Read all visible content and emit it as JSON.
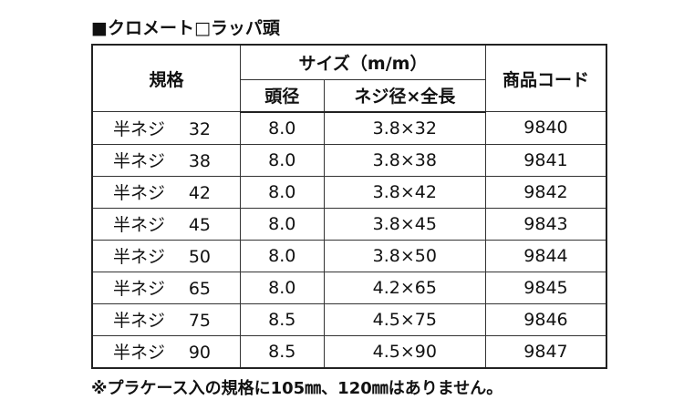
{
  "header": {
    "title": "■クロメート□ラッパ頭"
  },
  "table": {
    "columns": {
      "spec": "規格",
      "size": "サイズ（m/m）",
      "head": "頭径",
      "dims": "ネジ径×全長",
      "code": "商品コード"
    },
    "rows": [
      {
        "name": "半ネジ",
        "length": "32",
        "head": "8.0",
        "dims": "3.8×32",
        "code": "9840"
      },
      {
        "name": "半ネジ",
        "length": "38",
        "head": "8.0",
        "dims": "3.8×38",
        "code": "9841"
      },
      {
        "name": "半ネジ",
        "length": "42",
        "head": "8.0",
        "dims": "3.8×42",
        "code": "9842"
      },
      {
        "name": "半ネジ",
        "length": "45",
        "head": "8.0",
        "dims": "3.8×45",
        "code": "9843"
      },
      {
        "name": "半ネジ",
        "length": "50",
        "head": "8.0",
        "dims": "3.8×50",
        "code": "9844"
      },
      {
        "name": "半ネジ",
        "length": "65",
        "head": "8.0",
        "dims": "4.2×65",
        "code": "9845"
      },
      {
        "name": "半ネジ",
        "length": "75",
        "head": "8.5",
        "dims": "4.5×75",
        "code": "9846"
      },
      {
        "name": "半ネジ",
        "length": "90",
        "head": "8.5",
        "dims": "4.5×90",
        "code": "9847"
      }
    ]
  },
  "footnote": "※プラケース入の規格に105㎜、120㎜はありません。"
}
